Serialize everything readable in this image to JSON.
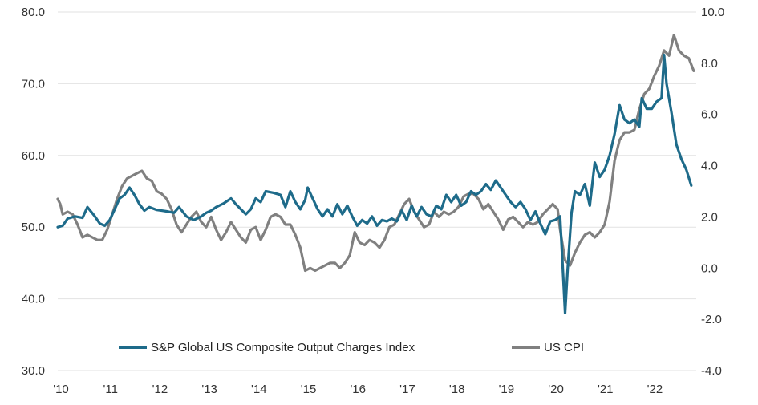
{
  "chart_data": {
    "type": "line",
    "title": "",
    "xlabel": "",
    "ylabel": "",
    "x_tick_labels": [
      "'10",
      "'11",
      "'12",
      "'13",
      "'14",
      "'15",
      "'16",
      "'17",
      "'18",
      "'19",
      "'20",
      "'21",
      "'22"
    ],
    "x_range": [
      2010,
      2022.9
    ],
    "y_left": {
      "ticks": [
        "80.0",
        "70.0",
        "60.0",
        "50.0",
        "40.0",
        "30.0"
      ],
      "values": [
        80,
        70,
        60,
        50,
        40,
        30
      ],
      "range": [
        30,
        80
      ]
    },
    "y_right": {
      "ticks": [
        "10.0",
        "8.0",
        "6.0",
        "4.0",
        "2.0",
        "0.0",
        "-2.0",
        "-4.0"
      ],
      "values": [
        10,
        8,
        6,
        4,
        2,
        0,
        -2,
        -4
      ],
      "range": [
        -4,
        10
      ]
    },
    "grid": "horizontal",
    "legend_position": "bottom-center",
    "series": [
      {
        "name": "S&P Global US Composite Output Charges Index",
        "axis": "left",
        "color": "#1e6b8a",
        "points": [
          [
            2010.0,
            50.0
          ],
          [
            2010.1,
            50.2
          ],
          [
            2010.2,
            51.2
          ],
          [
            2010.35,
            51.5
          ],
          [
            2010.5,
            51.3
          ],
          [
            2010.6,
            52.8
          ],
          [
            2010.75,
            51.5
          ],
          [
            2010.85,
            50.5
          ],
          [
            2010.95,
            50.2
          ],
          [
            2011.05,
            51.0
          ],
          [
            2011.15,
            52.5
          ],
          [
            2011.25,
            54.0
          ],
          [
            2011.35,
            54.5
          ],
          [
            2011.45,
            55.5
          ],
          [
            2011.55,
            54.5
          ],
          [
            2011.65,
            53.2
          ],
          [
            2011.75,
            52.3
          ],
          [
            2011.85,
            52.8
          ],
          [
            2012.0,
            52.4
          ],
          [
            2012.1,
            52.3
          ],
          [
            2012.2,
            52.2
          ],
          [
            2012.35,
            52.0
          ],
          [
            2012.45,
            52.8
          ],
          [
            2012.6,
            51.5
          ],
          [
            2012.75,
            51.0
          ],
          [
            2012.9,
            51.5
          ],
          [
            2013.0,
            52.0
          ],
          [
            2013.1,
            52.3
          ],
          [
            2013.2,
            52.8
          ],
          [
            2013.35,
            53.3
          ],
          [
            2013.5,
            54.0
          ],
          [
            2013.6,
            53.2
          ],
          [
            2013.7,
            52.5
          ],
          [
            2013.8,
            51.8
          ],
          [
            2013.9,
            52.5
          ],
          [
            2014.0,
            54.0
          ],
          [
            2014.1,
            53.5
          ],
          [
            2014.2,
            55.0
          ],
          [
            2014.35,
            54.8
          ],
          [
            2014.5,
            54.5
          ],
          [
            2014.6,
            52.8
          ],
          [
            2014.7,
            55.0
          ],
          [
            2014.8,
            53.5
          ],
          [
            2014.9,
            52.5
          ],
          [
            2015.0,
            53.8
          ],
          [
            2015.05,
            55.5
          ],
          [
            2015.15,
            54.0
          ],
          [
            2015.25,
            52.5
          ],
          [
            2015.35,
            51.5
          ],
          [
            2015.45,
            52.5
          ],
          [
            2015.55,
            51.5
          ],
          [
            2015.65,
            53.2
          ],
          [
            2015.75,
            51.8
          ],
          [
            2015.85,
            53.0
          ],
          [
            2015.95,
            51.5
          ],
          [
            2016.05,
            50.2
          ],
          [
            2016.15,
            51.0
          ],
          [
            2016.25,
            50.5
          ],
          [
            2016.35,
            51.5
          ],
          [
            2016.45,
            50.2
          ],
          [
            2016.55,
            51.0
          ],
          [
            2016.65,
            50.8
          ],
          [
            2016.75,
            51.2
          ],
          [
            2016.85,
            50.8
          ],
          [
            2016.95,
            52.3
          ],
          [
            2017.05,
            51.0
          ],
          [
            2017.15,
            53.0
          ],
          [
            2017.25,
            51.5
          ],
          [
            2017.35,
            52.8
          ],
          [
            2017.45,
            51.8
          ],
          [
            2017.55,
            51.5
          ],
          [
            2017.65,
            53.0
          ],
          [
            2017.75,
            52.5
          ],
          [
            2017.85,
            54.5
          ],
          [
            2017.95,
            53.5
          ],
          [
            2018.05,
            54.5
          ],
          [
            2018.15,
            53.0
          ],
          [
            2018.25,
            53.5
          ],
          [
            2018.35,
            55.0
          ],
          [
            2018.45,
            54.5
          ],
          [
            2018.55,
            55.0
          ],
          [
            2018.65,
            56.0
          ],
          [
            2018.75,
            55.2
          ],
          [
            2018.85,
            56.5
          ],
          [
            2018.95,
            55.5
          ],
          [
            2019.05,
            54.5
          ],
          [
            2019.15,
            53.5
          ],
          [
            2019.25,
            52.8
          ],
          [
            2019.35,
            53.5
          ],
          [
            2019.45,
            52.5
          ],
          [
            2019.55,
            51.0
          ],
          [
            2019.65,
            52.2
          ],
          [
            2019.75,
            50.5
          ],
          [
            2019.85,
            49.0
          ],
          [
            2019.95,
            50.8
          ],
          [
            2020.05,
            51.0
          ],
          [
            2020.15,
            51.5
          ],
          [
            2020.25,
            38.0
          ],
          [
            2020.3,
            44.0
          ],
          [
            2020.38,
            52.0
          ],
          [
            2020.45,
            55.0
          ],
          [
            2020.55,
            54.5
          ],
          [
            2020.65,
            56.0
          ],
          [
            2020.75,
            53.0
          ],
          [
            2020.85,
            59.0
          ],
          [
            2020.95,
            57.0
          ],
          [
            2021.05,
            58.0
          ],
          [
            2021.15,
            60.0
          ],
          [
            2021.25,
            63.0
          ],
          [
            2021.35,
            67.0
          ],
          [
            2021.45,
            65.0
          ],
          [
            2021.55,
            64.5
          ],
          [
            2021.65,
            65.0
          ],
          [
            2021.75,
            64.0
          ],
          [
            2021.8,
            68.0
          ],
          [
            2021.9,
            66.5
          ],
          [
            2022.0,
            66.5
          ],
          [
            2022.1,
            67.5
          ],
          [
            2022.2,
            68.0
          ],
          [
            2022.25,
            74.0
          ],
          [
            2022.3,
            70.0
          ],
          [
            2022.4,
            66.0
          ],
          [
            2022.5,
            61.5
          ],
          [
            2022.6,
            59.5
          ],
          [
            2022.7,
            58.0
          ],
          [
            2022.8,
            55.8
          ]
        ]
      },
      {
        "name": "US CPI",
        "axis": "right",
        "color": "#808080",
        "points": [
          [
            2010.0,
            2.7
          ],
          [
            2010.05,
            2.5
          ],
          [
            2010.1,
            2.1
          ],
          [
            2010.2,
            2.2
          ],
          [
            2010.3,
            2.1
          ],
          [
            2010.4,
            1.7
          ],
          [
            2010.5,
            1.2
          ],
          [
            2010.6,
            1.3
          ],
          [
            2010.7,
            1.2
          ],
          [
            2010.8,
            1.1
          ],
          [
            2010.9,
            1.1
          ],
          [
            2011.0,
            1.5
          ],
          [
            2011.1,
            2.1
          ],
          [
            2011.2,
            2.7
          ],
          [
            2011.3,
            3.2
          ],
          [
            2011.4,
            3.5
          ],
          [
            2011.5,
            3.6
          ],
          [
            2011.6,
            3.7
          ],
          [
            2011.7,
            3.8
          ],
          [
            2011.8,
            3.5
          ],
          [
            2011.9,
            3.4
          ],
          [
            2012.0,
            3.0
          ],
          [
            2012.1,
            2.9
          ],
          [
            2012.2,
            2.7
          ],
          [
            2012.3,
            2.3
          ],
          [
            2012.4,
            1.7
          ],
          [
            2012.5,
            1.4
          ],
          [
            2012.6,
            1.7
          ],
          [
            2012.7,
            2.0
          ],
          [
            2012.8,
            2.2
          ],
          [
            2012.9,
            1.8
          ],
          [
            2013.0,
            1.6
          ],
          [
            2013.1,
            2.0
          ],
          [
            2013.2,
            1.5
          ],
          [
            2013.3,
            1.1
          ],
          [
            2013.4,
            1.4
          ],
          [
            2013.5,
            1.8
          ],
          [
            2013.6,
            1.5
          ],
          [
            2013.7,
            1.2
          ],
          [
            2013.8,
            1.0
          ],
          [
            2013.9,
            1.5
          ],
          [
            2014.0,
            1.6
          ],
          [
            2014.1,
            1.1
          ],
          [
            2014.2,
            1.5
          ],
          [
            2014.3,
            2.0
          ],
          [
            2014.4,
            2.1
          ],
          [
            2014.5,
            2.0
          ],
          [
            2014.6,
            1.7
          ],
          [
            2014.7,
            1.7
          ],
          [
            2014.8,
            1.3
          ],
          [
            2014.9,
            0.8
          ],
          [
            2015.0,
            -0.1
          ],
          [
            2015.1,
            0.0
          ],
          [
            2015.2,
            -0.1
          ],
          [
            2015.3,
            0.0
          ],
          [
            2015.4,
            0.1
          ],
          [
            2015.5,
            0.2
          ],
          [
            2015.6,
            0.2
          ],
          [
            2015.7,
            0.0
          ],
          [
            2015.8,
            0.2
          ],
          [
            2015.9,
            0.5
          ],
          [
            2016.0,
            1.4
          ],
          [
            2016.1,
            1.0
          ],
          [
            2016.2,
            0.9
          ],
          [
            2016.3,
            1.1
          ],
          [
            2016.4,
            1.0
          ],
          [
            2016.5,
            0.8
          ],
          [
            2016.6,
            1.1
          ],
          [
            2016.7,
            1.6
          ],
          [
            2016.8,
            1.7
          ],
          [
            2016.9,
            2.1
          ],
          [
            2017.0,
            2.5
          ],
          [
            2017.1,
            2.7
          ],
          [
            2017.2,
            2.2
          ],
          [
            2017.3,
            1.9
          ],
          [
            2017.4,
            1.6
          ],
          [
            2017.5,
            1.7
          ],
          [
            2017.6,
            2.2
          ],
          [
            2017.7,
            2.0
          ],
          [
            2017.8,
            2.2
          ],
          [
            2017.9,
            2.1
          ],
          [
            2018.0,
            2.2
          ],
          [
            2018.1,
            2.4
          ],
          [
            2018.2,
            2.8
          ],
          [
            2018.3,
            2.9
          ],
          [
            2018.4,
            2.9
          ],
          [
            2018.5,
            2.7
          ],
          [
            2018.6,
            2.3
          ],
          [
            2018.7,
            2.5
          ],
          [
            2018.8,
            2.2
          ],
          [
            2018.9,
            1.9
          ],
          [
            2019.0,
            1.5
          ],
          [
            2019.1,
            1.9
          ],
          [
            2019.2,
            2.0
          ],
          [
            2019.3,
            1.8
          ],
          [
            2019.4,
            1.6
          ],
          [
            2019.5,
            1.8
          ],
          [
            2019.6,
            1.7
          ],
          [
            2019.7,
            1.8
          ],
          [
            2019.8,
            2.1
          ],
          [
            2019.9,
            2.3
          ],
          [
            2020.0,
            2.5
          ],
          [
            2020.1,
            2.3
          ],
          [
            2020.15,
            1.5
          ],
          [
            2020.25,
            0.3
          ],
          [
            2020.35,
            0.1
          ],
          [
            2020.45,
            0.6
          ],
          [
            2020.55,
            1.0
          ],
          [
            2020.65,
            1.3
          ],
          [
            2020.75,
            1.4
          ],
          [
            2020.85,
            1.2
          ],
          [
            2020.95,
            1.4
          ],
          [
            2021.05,
            1.7
          ],
          [
            2021.15,
            2.6
          ],
          [
            2021.25,
            4.2
          ],
          [
            2021.35,
            5.0
          ],
          [
            2021.45,
            5.3
          ],
          [
            2021.55,
            5.3
          ],
          [
            2021.65,
            5.4
          ],
          [
            2021.75,
            6.2
          ],
          [
            2021.85,
            6.8
          ],
          [
            2021.95,
            7.0
          ],
          [
            2022.05,
            7.5
          ],
          [
            2022.15,
            7.9
          ],
          [
            2022.25,
            8.5
          ],
          [
            2022.35,
            8.3
          ],
          [
            2022.45,
            9.1
          ],
          [
            2022.55,
            8.5
          ],
          [
            2022.65,
            8.3
          ],
          [
            2022.75,
            8.2
          ],
          [
            2022.85,
            7.7
          ]
        ]
      }
    ]
  }
}
